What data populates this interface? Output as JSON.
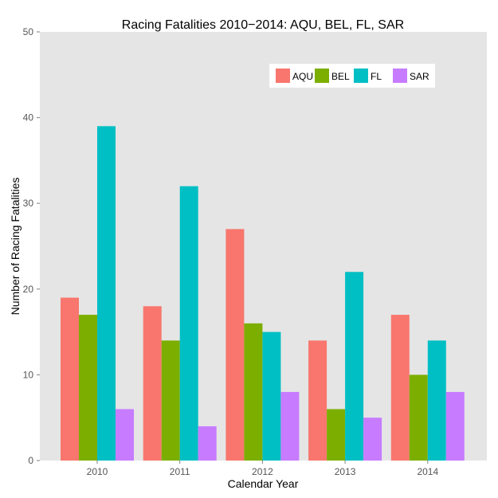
{
  "chart_data": {
    "type": "bar",
    "title": "Racing Fatalities 2010−2014: AQU, BEL, FL, SAR",
    "xlabel": "Calendar Year",
    "ylabel": "Number of Racing Fatalities",
    "categories": [
      "2010",
      "2011",
      "2012",
      "2013",
      "2014"
    ],
    "ylim": [
      0,
      50
    ],
    "yticks": [
      0,
      10,
      20,
      30,
      40,
      50
    ],
    "grid": false,
    "legend_position": "top-right",
    "series": [
      {
        "name": "AQU",
        "color": "#F8766D",
        "values": [
          19,
          18,
          27,
          14,
          17
        ]
      },
      {
        "name": "BEL",
        "color": "#7CAE00",
        "values": [
          17,
          14,
          16,
          6,
          10
        ]
      },
      {
        "name": "FL",
        "color": "#00BFC4",
        "values": [
          39,
          32,
          15,
          22,
          14
        ]
      },
      {
        "name": "SAR",
        "color": "#C77CFF",
        "values": [
          6,
          4,
          8,
          5,
          8
        ]
      }
    ]
  },
  "colors": {
    "panel_background": "#E5E5E5",
    "legend_background": "#FFFFFF"
  }
}
